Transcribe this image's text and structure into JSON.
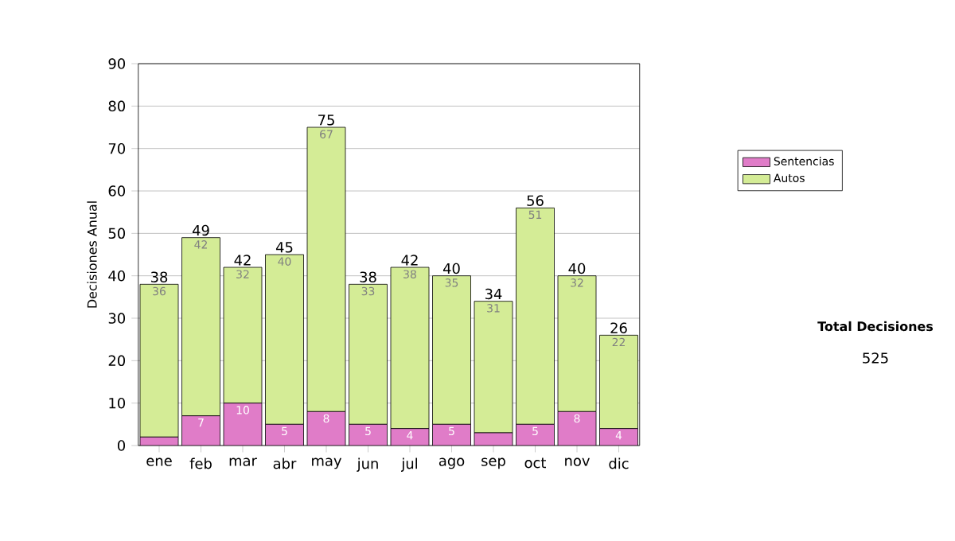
{
  "chart_data": {
    "type": "bar",
    "stacked": true,
    "ylabel": "Decisiones Anual",
    "categories": [
      "ene",
      "feb",
      "mar",
      "abr",
      "may",
      "jun",
      "jul",
      "ago",
      "sep",
      "oct",
      "nov",
      "dic"
    ],
    "series": [
      {
        "name": "Sentencias",
        "color": "#e07cc8",
        "values": [
          2,
          7,
          10,
          5,
          8,
          5,
          4,
          5,
          3,
          5,
          8,
          4
        ],
        "value_labels": [
          null,
          "7",
          "10",
          "5",
          "8",
          "5",
          "4",
          "5",
          null,
          "5",
          "8",
          "4"
        ]
      },
      {
        "name": "Autos",
        "color": "#d4ec96",
        "values": [
          36,
          42,
          32,
          40,
          67,
          33,
          38,
          35,
          31,
          51,
          32,
          22
        ],
        "value_labels": [
          "36",
          "42",
          "32",
          "40",
          "67",
          "33",
          "38",
          "35",
          "31",
          "51",
          "32",
          "22"
        ]
      }
    ],
    "totals": [
      "38",
      "49",
      "42",
      "45",
      "75",
      "38",
      "42",
      "40",
      "34",
      "56",
      "40",
      "26"
    ],
    "ylim": [
      0,
      90
    ],
    "yticks": [
      0,
      10,
      20,
      30,
      40,
      50,
      60,
      70,
      80,
      90
    ],
    "grid": "y",
    "legend": "right",
    "annotations": [
      "Total Decisiones",
      "525"
    ]
  }
}
